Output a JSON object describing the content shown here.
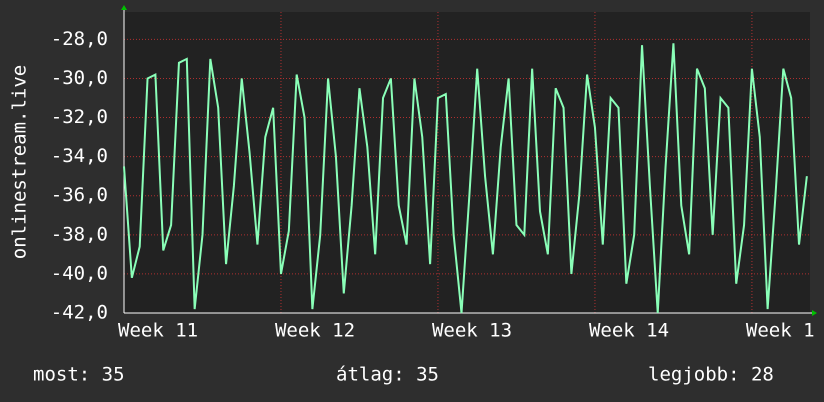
{
  "chart_data": {
    "type": "line",
    "y_label": "onlinestream.live",
    "x": [
      11,
      11.05,
      11.1,
      11.15,
      11.2,
      11.25,
      11.3,
      11.35,
      11.4,
      11.45,
      11.5,
      11.55,
      11.6,
      11.65,
      11.7,
      11.75,
      11.8,
      11.85,
      11.9,
      11.95,
      12,
      12.05,
      12.1,
      12.15,
      12.2,
      12.25,
      12.3,
      12.35,
      12.4,
      12.45,
      12.5,
      12.55,
      12.6,
      12.65,
      12.7,
      12.75,
      12.8,
      12.85,
      12.9,
      12.95,
      13,
      13.05,
      13.1,
      13.15,
      13.2,
      13.25,
      13.3,
      13.35,
      13.4,
      13.45,
      13.5,
      13.55,
      13.6,
      13.65,
      13.7,
      13.75,
      13.8,
      13.85,
      13.9,
      13.95,
      14,
      14.05,
      14.1,
      14.15,
      14.2,
      14.25,
      14.3,
      14.35,
      14.4,
      14.45,
      14.5,
      14.55,
      14.6,
      14.65,
      14.7,
      14.75,
      14.8,
      14.85,
      14.9,
      14.95,
      15,
      15.05,
      15.1,
      15.15,
      15.2,
      15.25,
      15.3,
      15.35
    ],
    "series": [
      {
        "color": "#8affb8",
        "values": [
          -34.5,
          -40.2,
          -38.6,
          -30.0,
          -29.8,
          -38.8,
          -37.5,
          -29.2,
          -29.0,
          -41.8,
          -38.0,
          -29.0,
          -31.5,
          -39.5,
          -35.5,
          -30.0,
          -33.8,
          -38.5,
          -33.0,
          -31.5,
          -40.0,
          -37.8,
          -29.8,
          -32.0,
          -41.8,
          -38.0,
          -30.0,
          -34.0,
          -41.0,
          -36.5,
          -30.5,
          -33.5,
          -39.0,
          -31.0,
          -30.0,
          -36.5,
          -38.5,
          -30.0,
          -33.0,
          -39.5,
          -31.0,
          -30.8,
          -38.0,
          -42.0,
          -36.0,
          -29.5,
          -35.0,
          -39.0,
          -33.5,
          -30.0,
          -37.5,
          -38.0,
          -29.5,
          -36.8,
          -39.0,
          -30.5,
          -31.5,
          -40.0,
          -36.0,
          -29.8,
          -32.5,
          -38.5,
          -31.0,
          -31.5,
          -40.5,
          -38.0,
          -28.3,
          -35.5,
          -42.0,
          -34.5,
          -28.2,
          -36.5,
          -39.0,
          -29.5,
          -30.5,
          -38.0,
          -31.0,
          -31.5,
          -40.5,
          -37.5,
          -29.5,
          -33.0,
          -41.8,
          -36.0,
          -29.5,
          -31.0,
          -38.5,
          -35.0
        ]
      }
    ],
    "xlim": [
      11,
      15.37
    ],
    "xticks": [
      {
        "value": 11,
        "label": "Week 11"
      },
      {
        "value": 12,
        "label": "Week 12"
      },
      {
        "value": 13,
        "label": "Week 13"
      },
      {
        "value": 14,
        "label": "Week 14"
      },
      {
        "value": 15,
        "label": "Week 1"
      }
    ],
    "ylim": [
      -42,
      -26.6
    ],
    "yticks": [
      {
        "value": -42,
        "label": "-42,0"
      },
      {
        "value": -40,
        "label": "-40,0"
      },
      {
        "value": -38,
        "label": "-38,0"
      },
      {
        "value": -36,
        "label": "-36,0"
      },
      {
        "value": -34,
        "label": "-34,0"
      },
      {
        "value": -32,
        "label": "-32,0"
      },
      {
        "value": -30,
        "label": "-30,0"
      },
      {
        "value": -28,
        "label": "-28,0"
      }
    ],
    "grid": true,
    "stats": [
      "most: 35",
      "átlag: 35",
      "legjobb: 28"
    ]
  }
}
